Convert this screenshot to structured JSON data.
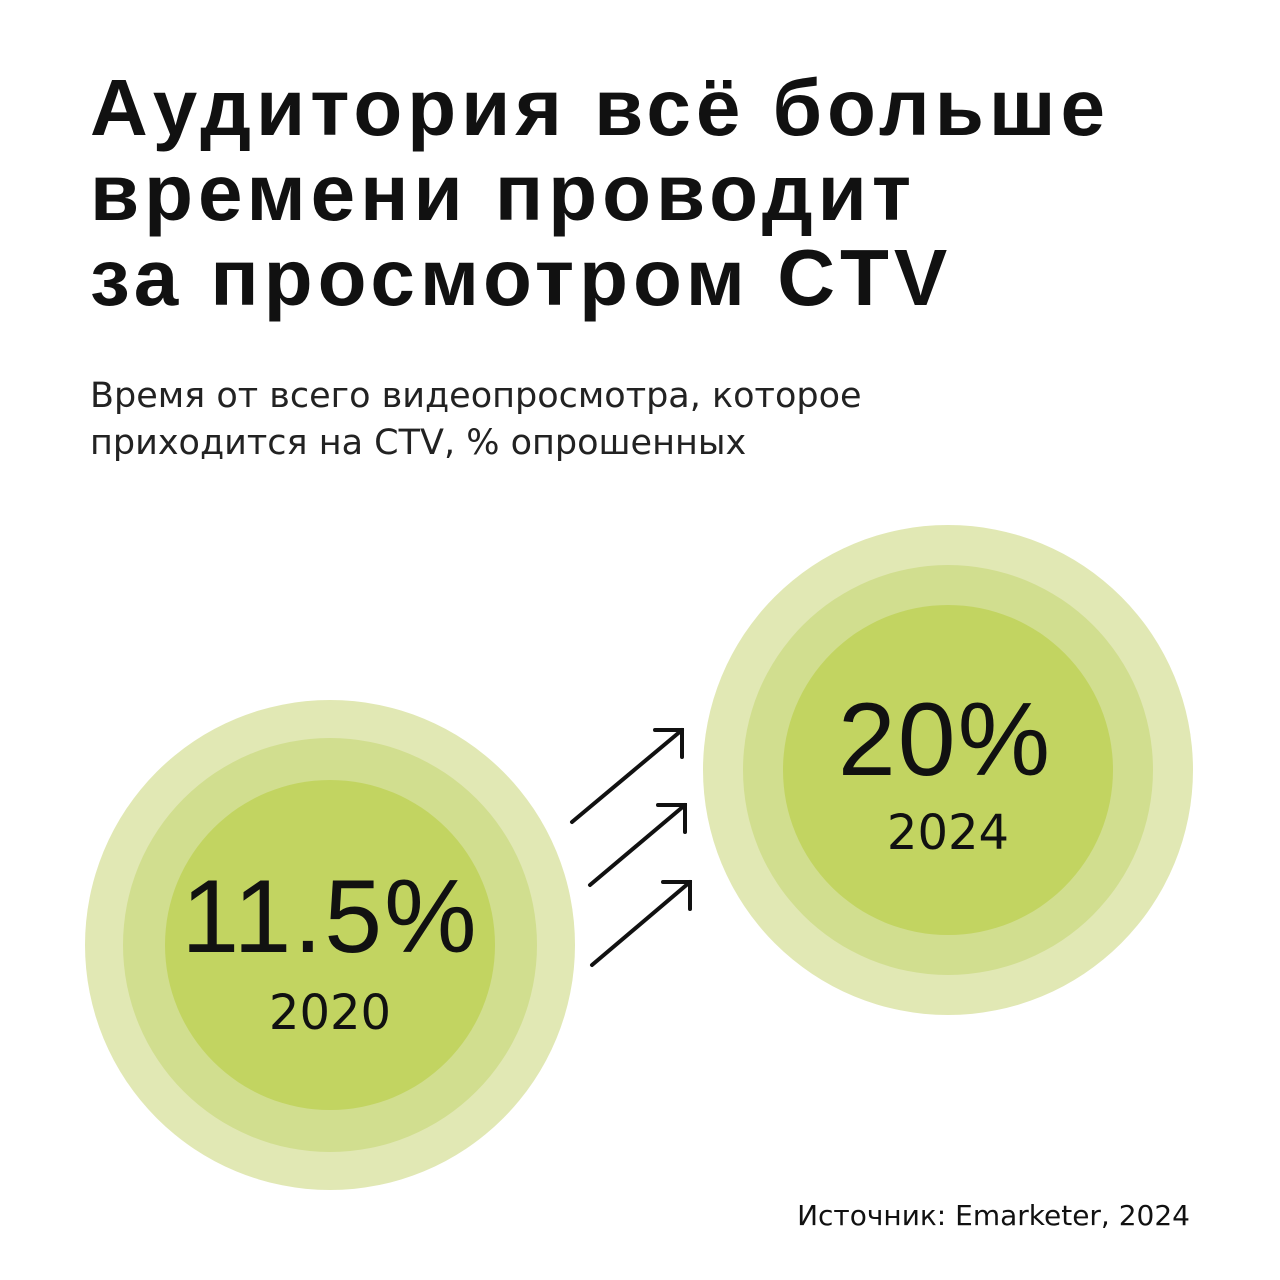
{
  "title_lines": [
    "Аудитория всё больше",
    "времени проводит",
    "за просмотром CTV"
  ],
  "subtitle_lines": [
    "Время от всего видеопросмотра, которое",
    "приходится на CTV, % опрошенных"
  ],
  "items": [
    {
      "value": "11.5%",
      "year": "2020"
    },
    {
      "value": "20%",
      "year": "2024"
    }
  ],
  "source": "Источник: Emarketer, 2024"
}
